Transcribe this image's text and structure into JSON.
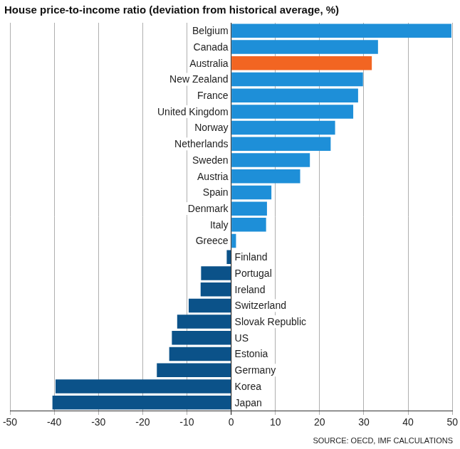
{
  "chart_data": {
    "type": "bar",
    "orientation": "horizontal",
    "title": "House price-to-income ratio (deviation from historical average, %)",
    "source": "SOURCE: OECD, IMF CALCULATIONS",
    "categories": [
      "Belgium",
      "Canada",
      "Australia",
      "New Zealand",
      "France",
      "United Kingdom",
      "Norway",
      "Netherlands",
      "Sweden",
      "Austria",
      "Spain",
      "Denmark",
      "Italy",
      "Greece",
      "Finland",
      "Portugal",
      "Ireland",
      "Switzerland",
      "Slovak Republic",
      "US",
      "Estonia",
      "Germany",
      "Korea",
      "Japan"
    ],
    "values": [
      49.8,
      33.2,
      31.8,
      29.8,
      28.7,
      27.6,
      23.5,
      22.5,
      17.8,
      15.6,
      9.1,
      8.1,
      7.9,
      1.1,
      -1.0,
      -6.8,
      -6.9,
      -9.6,
      -12.2,
      -13.4,
      -14.0,
      -16.8,
      -39.7,
      -40.4
    ],
    "colors": [
      "#1e8fd8",
      "#1e8fd8",
      "#f26522",
      "#1e8fd8",
      "#1e8fd8",
      "#1e8fd8",
      "#1e8fd8",
      "#1e8fd8",
      "#1e8fd8",
      "#1e8fd8",
      "#1e8fd8",
      "#1e8fd8",
      "#1e8fd8",
      "#1e8fd8",
      "#0b5289",
      "#0b5289",
      "#0b5289",
      "#0b5289",
      "#0b5289",
      "#0b5289",
      "#0b5289",
      "#0b5289",
      "#0b5289",
      "#0b5289"
    ],
    "xlim": [
      -50,
      50
    ],
    "xticks": [
      -50,
      -40,
      -30,
      -20,
      -10,
      0,
      10,
      20,
      30,
      40,
      50
    ],
    "grid": true,
    "tick_labels": "x"
  }
}
